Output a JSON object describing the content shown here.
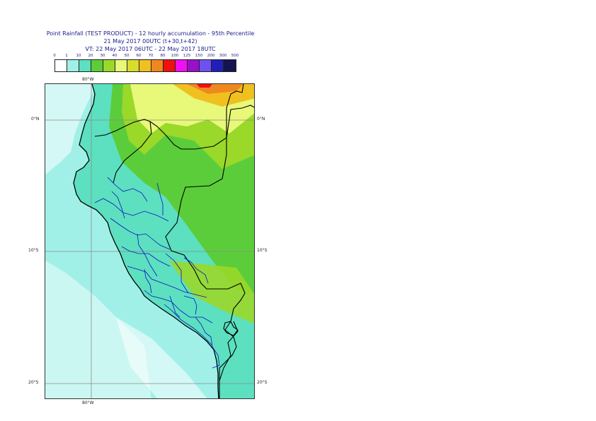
{
  "title": {
    "line1": "Point Rainfall (TEST PRODUCT) - 12 hourly accumulation - 95th Percentile",
    "line2": "21 May 2017 00UTC (t+30,t+42)",
    "line3": "VT: 22 May 2017 06UTC - 22 May 2017 18UTC"
  },
  "legend": {
    "ticks": [
      "0",
      "1",
      "10",
      "20",
      "30",
      "40",
      "50",
      "60",
      "70",
      "80",
      "100",
      "125",
      "150",
      "200",
      "300",
      "500"
    ],
    "colors": [
      "#ffffff",
      "#a0f0e8",
      "#5ce0c0",
      "#5ccd3a",
      "#9ad82a",
      "#e8f878",
      "#d8dc2a",
      "#f0c020",
      "#f08820",
      "#f01010",
      "#f010f0",
      "#9a10c8",
      "#7050f0",
      "#2020b8",
      "#141450"
    ]
  },
  "map": {
    "lat_labels": [
      "0°N",
      "10°S",
      "20°S"
    ],
    "lon_labels": [
      "80°W"
    ],
    "colors": {
      "sea": "#a0f0e8",
      "land_low": "#5ce0c0",
      "land_mid": "#5ccd3a",
      "land_high": "#9ad82a",
      "land_wet": "#e8f878",
      "heavy": "#f0c020",
      "very_heavy": "#f08820",
      "extreme": "#f01010",
      "dry": "#ffffff",
      "country_border": "#000000",
      "region_border": "#1010c0",
      "gridline": "#8c8c8c"
    }
  }
}
